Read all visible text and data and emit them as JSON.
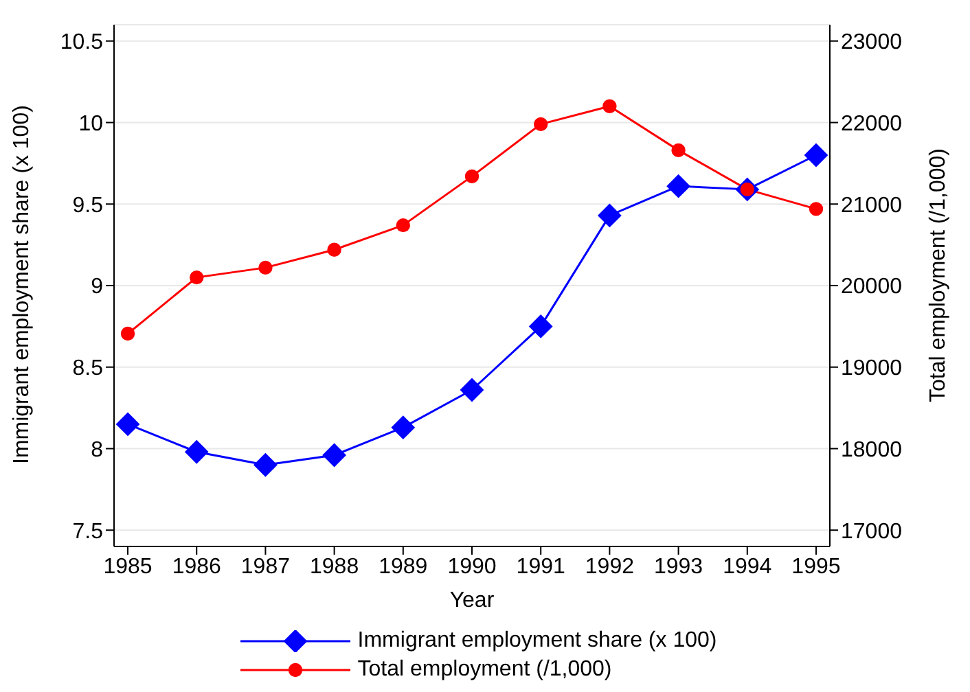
{
  "chart_data": {
    "type": "line",
    "xlabel": "Year",
    "ylabel": "Immigrant employment share (x 100)",
    "y2label": "Total employment (/1,000)",
    "x": [
      1985,
      1986,
      1987,
      1988,
      1989,
      1990,
      1991,
      1992,
      1993,
      1994,
      1995
    ],
    "series": [
      {
        "name": "Immigrant employment share (x 100)",
        "color": "#0000ff",
        "marker": "diamond",
        "values": [
          8.15,
          7.98,
          7.9,
          7.96,
          8.13,
          8.36,
          8.75,
          9.43,
          9.61,
          9.59,
          9.8
        ]
      },
      {
        "name": "Total employment (/1,000)",
        "color": "#ff0000",
        "marker": "circle",
        "axis": "y2",
        "values": [
          19410,
          20100,
          20220,
          20440,
          20740,
          21340,
          21980,
          22200,
          21660,
          21180,
          20940
        ]
      }
    ],
    "xlim": [
      1984.8,
      1995.2
    ],
    "xticks": [
      1985,
      1986,
      1987,
      1988,
      1989,
      1990,
      1991,
      1992,
      1993,
      1994,
      1995
    ],
    "ylim": [
      7.4,
      10.6
    ],
    "yticks": [
      7.5,
      8,
      8.5,
      9,
      9.5,
      10,
      10.5
    ],
    "y2lim": [
      16800,
      23200
    ],
    "y2ticks": [
      17000,
      18000,
      19000,
      20000,
      21000,
      22000,
      23000
    ],
    "grid": "y",
    "legend": "bottom"
  }
}
